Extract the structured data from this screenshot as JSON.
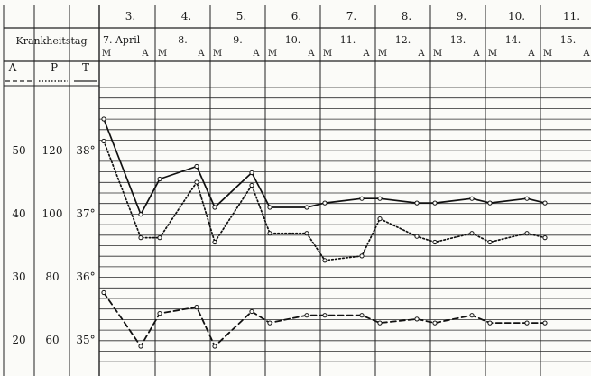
{
  "header": {
    "corner_label": "Krankheitstag",
    "col_A": "A",
    "col_P": "P",
    "col_T": "T"
  },
  "illness_days": [
    "3.",
    "4.",
    "5.",
    "6.",
    "7.",
    "8.",
    "9.",
    "10.",
    "11."
  ],
  "dates": [
    "7. April",
    "8.",
    "9.",
    "10.",
    "11.",
    "12.",
    "13.",
    "14.",
    "15."
  ],
  "time_labels": {
    "morning": "M",
    "evening": "A"
  },
  "axis_values": {
    "A": [
      "50",
      "40",
      "30",
      "20"
    ],
    "P": [
      "120",
      "100",
      "80",
      "60"
    ],
    "T": [
      "38°",
      "37°",
      "36°",
      "35°"
    ]
  },
  "chart_data": {
    "type": "line",
    "title": "",
    "x": [
      "7. April M",
      "7. April A",
      "8. M",
      "8. A",
      "9. M",
      "9. A",
      "10. M",
      "10. A",
      "11. M",
      "11. A",
      "12. M",
      "12. A",
      "13. M",
      "13. A",
      "14. M",
      "14. A",
      "15. M",
      "15. A"
    ],
    "ylim_T": [
      34.6,
      38.9
    ],
    "series": [
      {
        "style": "solid",
        "values": [
          38.5,
          36.99,
          37.55,
          37.75,
          37.1,
          37.65,
          37.1,
          37.1,
          37.17,
          37.24,
          37.24,
          37.17,
          37.17,
          37.24,
          37.17,
          37.24,
          37.17,
          null
        ]
      },
      {
        "style": "dotted",
        "values": [
          38.15,
          36.62,
          36.62,
          37.5,
          36.55,
          37.45,
          36.69,
          36.69,
          36.26,
          36.33,
          36.92,
          36.64,
          36.55,
          36.69,
          36.55,
          36.69,
          36.62,
          null
        ]
      },
      {
        "style": "dashed",
        "values": [
          35.75,
          34.9,
          35.42,
          35.52,
          34.9,
          35.45,
          35.27,
          35.39,
          35.39,
          35.39,
          35.27,
          35.33,
          35.27,
          35.39,
          35.27,
          35.27,
          35.27,
          null
        ]
      }
    ],
    "grid": true
  }
}
